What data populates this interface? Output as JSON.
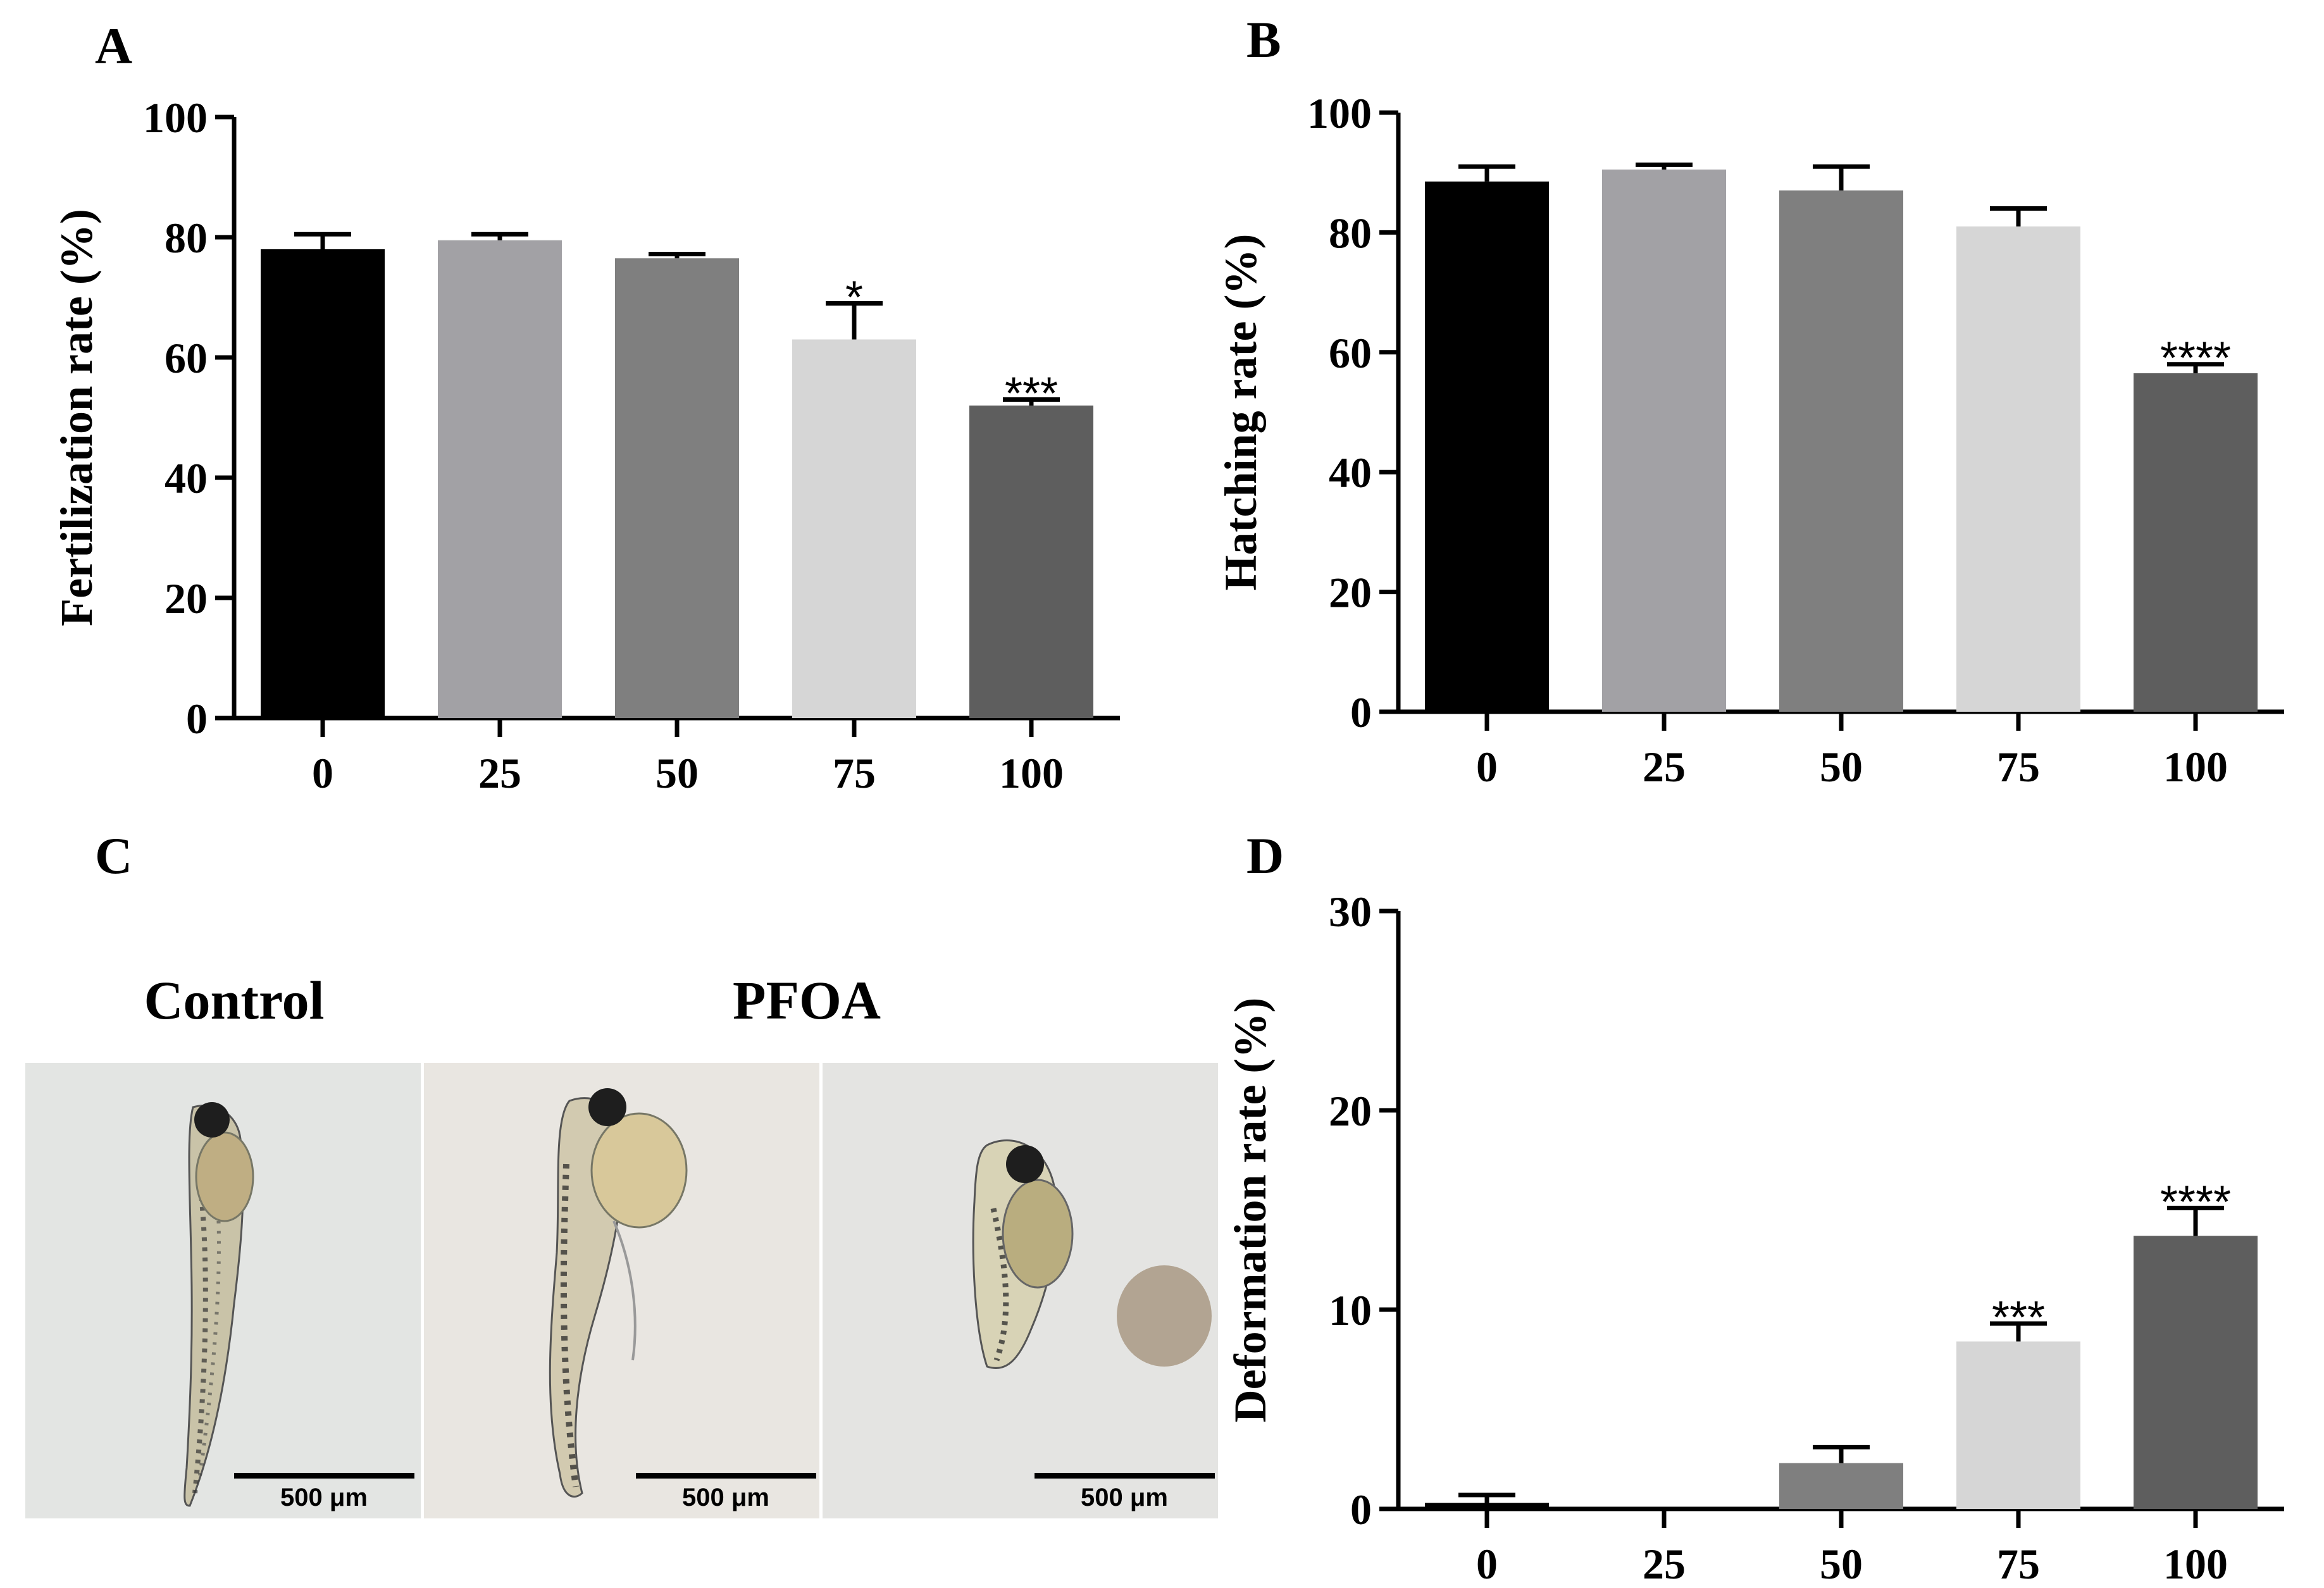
{
  "chart_data": [
    {
      "panel_label": "A",
      "type": "bar",
      "categories": [
        "0",
        "25",
        "50",
        "75",
        "100"
      ],
      "values": [
        78,
        79.5,
        76.5,
        63,
        52
      ],
      "errors": [
        2.5,
        1.0,
        0.7,
        6.0,
        1.0
      ],
      "significance": [
        "",
        "",
        "",
        "*",
        "***"
      ],
      "colors": [
        "#000000",
        "#a2a1a5",
        "#7f7f7f",
        "#d6d6d6",
        "#5e5e5e"
      ],
      "title": "",
      "xlabel": "",
      "ylabel": "Fertilization rate (%)",
      "ylim": [
        0,
        100
      ],
      "yticks": [
        "0",
        "20",
        "40",
        "60",
        "80",
        "100"
      ]
    },
    {
      "panel_label": "B",
      "type": "bar",
      "categories": [
        "0",
        "25",
        "50",
        "75",
        "100"
      ],
      "values": [
        88.5,
        90.5,
        87,
        81,
        56.5
      ],
      "errors": [
        2.5,
        0.8,
        4.0,
        3.0,
        1.5
      ],
      "significance": [
        "",
        "",
        "",
        "",
        "****"
      ],
      "colors": [
        "#000000",
        "#a2a1a5",
        "#7f7f7f",
        "#d6d6d6",
        "#5e5e5e"
      ],
      "title": "",
      "xlabel": "",
      "ylabel": "Hatching rate (%)",
      "ylim": [
        0,
        100
      ],
      "yticks": [
        "0",
        "20",
        "40",
        "60",
        "80",
        "100"
      ]
    },
    {
      "panel_label": "D",
      "type": "bar",
      "categories": [
        "0",
        "25",
        "50",
        "75",
        "100"
      ],
      "values": [
        0.3,
        0,
        2.3,
        8.4,
        13.7
      ],
      "errors": [
        0.4,
        0,
        0.8,
        0.9,
        1.4
      ],
      "significance": [
        "",
        "",
        "",
        "***",
        "****"
      ],
      "colors": [
        "#000000",
        "#a2a1a5",
        "#7f7f7f",
        "#d6d6d6",
        "#5e5e5e"
      ],
      "title": "",
      "xlabel": "",
      "ylabel": "Deformation rate (%)",
      "ylim": [
        0,
        30
      ],
      "yticks": [
        "0",
        "10",
        "20",
        "30"
      ]
    }
  ],
  "panel_c": {
    "label": "C",
    "control_label": "Control",
    "treatment_label": "PFOA",
    "scale_bars": [
      "500 μm",
      "500 μm",
      "500 μm"
    ]
  }
}
